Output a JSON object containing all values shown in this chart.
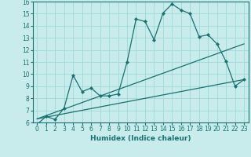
{
  "xlabel": "Humidex (Indice chaleur)",
  "bg_color": "#c8ecec",
  "line_color": "#1a7070",
  "grid_color": "#a0d8d8",
  "xlim": [
    -0.5,
    23.5
  ],
  "ylim": [
    6,
    16
  ],
  "xticks": [
    0,
    1,
    2,
    3,
    4,
    5,
    6,
    7,
    8,
    9,
    10,
    11,
    12,
    13,
    14,
    15,
    16,
    17,
    18,
    19,
    20,
    21,
    22,
    23
  ],
  "yticks": [
    6,
    7,
    8,
    9,
    10,
    11,
    12,
    13,
    14,
    15,
    16
  ],
  "line1_x": [
    0,
    1,
    2,
    3,
    4,
    5,
    6,
    7,
    8,
    9,
    10,
    11,
    12,
    13,
    14,
    15,
    16,
    17,
    18,
    19,
    20,
    21,
    22,
    23
  ],
  "line1_y": [
    5.85,
    6.5,
    6.25,
    7.2,
    9.9,
    8.55,
    8.85,
    8.2,
    8.2,
    8.35,
    11.0,
    14.55,
    14.35,
    12.85,
    15.05,
    15.8,
    15.3,
    15.0,
    13.1,
    13.25,
    12.5,
    11.05,
    9.0,
    9.55
  ],
  "line2_x": [
    0,
    23
  ],
  "line2_y": [
    6.3,
    9.55
  ],
  "line3_x": [
    0,
    23
  ],
  "line3_y": [
    6.3,
    12.5
  ]
}
